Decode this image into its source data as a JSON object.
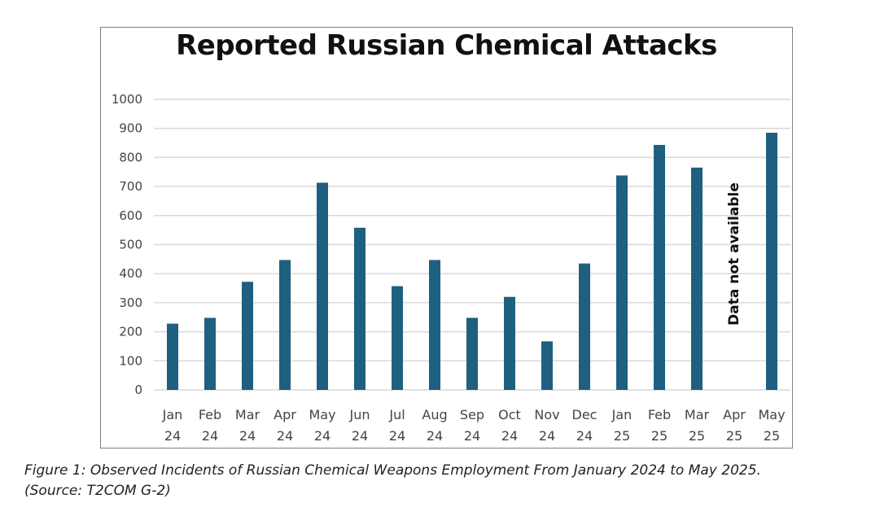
{
  "chart_data": {
    "type": "bar",
    "title": "Reported Russian Chemical Attacks",
    "xlabel": "",
    "ylabel": "",
    "ylim": [
      0,
      1000
    ],
    "yticks": [
      0,
      100,
      200,
      300,
      400,
      500,
      600,
      700,
      800,
      900,
      1000
    ],
    "grid": true,
    "categories": [
      [
        "Jan",
        "24"
      ],
      [
        "Feb",
        "24"
      ],
      [
        "Mar",
        "24"
      ],
      [
        "Apr",
        "24"
      ],
      [
        "May",
        "24"
      ],
      [
        "Jun",
        "24"
      ],
      [
        "Jul",
        "24"
      ],
      [
        "Aug",
        "24"
      ],
      [
        "Sep",
        "24"
      ],
      [
        "Oct",
        "24"
      ],
      [
        "Nov",
        "24"
      ],
      [
        "Dec",
        "24"
      ],
      [
        "Jan",
        "25"
      ],
      [
        "Feb",
        "25"
      ],
      [
        "Mar",
        "25"
      ],
      [
        "Apr",
        "25"
      ],
      [
        "May",
        "25"
      ]
    ],
    "values": [
      228,
      248,
      372,
      447,
      713,
      558,
      357,
      447,
      248,
      320,
      167,
      435,
      738,
      843,
      765,
      null,
      885
    ],
    "annotations": [
      {
        "category_index": 15,
        "text": "Data not available"
      }
    ],
    "bar_color": "#1f5f7f",
    "grid_color": "#d9d9d9"
  },
  "caption": {
    "line1": "Figure 1: Observed Incidents of Russian Chemical Weapons Employment From January 2024 to May 2025.",
    "line2": "(Source: T2COM G-2)"
  }
}
